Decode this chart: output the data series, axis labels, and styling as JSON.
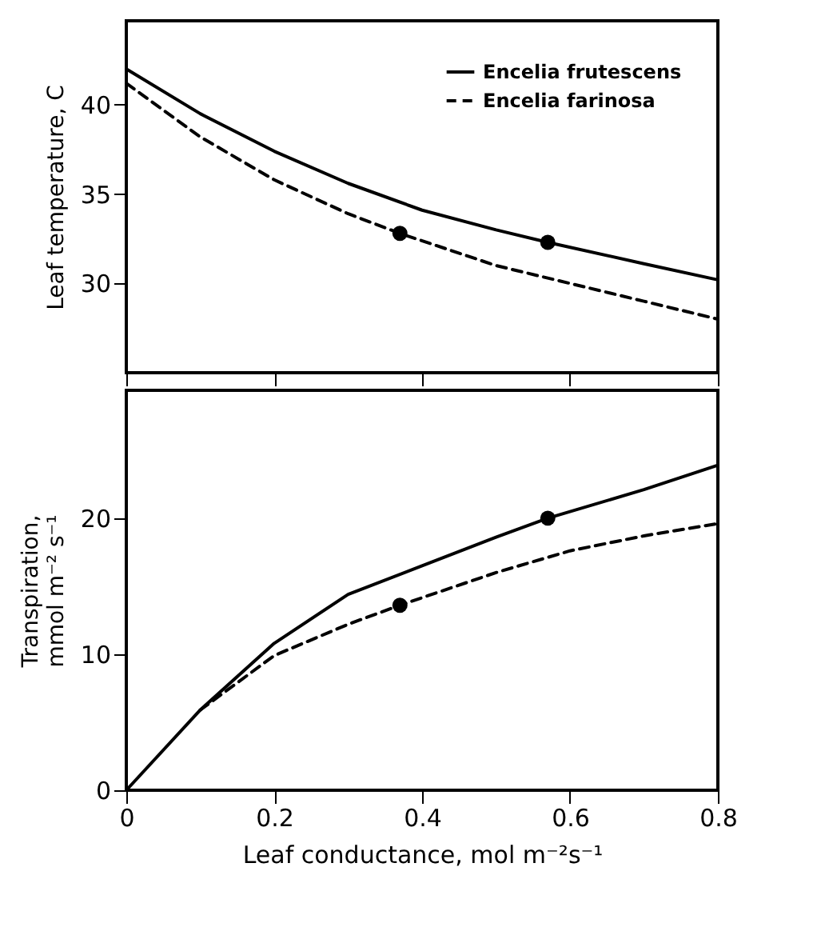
{
  "chart_data": [
    {
      "type": "line",
      "ylabel": "Leaf temperature, C",
      "xlim": [
        0,
        0.8
      ],
      "xticks": [
        0,
        0.2,
        0.4,
        0.6,
        0.8
      ],
      "ylim": [
        25,
        44.7
      ],
      "yticks": [
        30,
        35,
        40
      ],
      "tick_labels": "y",
      "grid": false,
      "legend": "top right",
      "marker": "none",
      "series": [
        {
          "name": "Encelia frutescens",
          "color": "#000000",
          "line_style": "solid",
          "x": [
            0,
            0.1,
            0.2,
            0.3,
            0.4,
            0.5,
            0.57,
            0.7,
            0.8
          ],
          "values": [
            42.0,
            39.5,
            37.4,
            35.6,
            34.1,
            33.0,
            32.3,
            31.1,
            30.2
          ]
        },
        {
          "name": "Encelia farinosa",
          "color": "#000000",
          "line_style": "dashed",
          "x": [
            0,
            0.1,
            0.2,
            0.3,
            0.37,
            0.5,
            0.6,
            0.7,
            0.8
          ],
          "values": [
            41.2,
            38.2,
            35.8,
            33.9,
            32.8,
            31.0,
            30.0,
            29.0,
            28.0
          ]
        },
        {
          "type": "scatter",
          "color": "#000000",
          "marker": "circle",
          "x": [
            0.37,
            0.57
          ],
          "values": [
            32.8,
            32.3
          ]
        }
      ]
    },
    {
      "type": "line",
      "xlabel": "Leaf conductance, mol m⁻²s⁻¹",
      "ylabel": "Transpiration,\nmmol m⁻² s⁻¹",
      "xlim": [
        0,
        0.8
      ],
      "xticks": [
        0,
        0.2,
        0.4,
        0.6,
        0.8
      ],
      "ylim": [
        0,
        29.4
      ],
      "yticks": [
        0,
        10,
        20
      ],
      "grid": false,
      "legend": false,
      "marker": "none",
      "series": [
        {
          "color": "#000000",
          "line_style": "solid",
          "x": [
            0,
            0.1,
            0.2,
            0.3,
            0.4,
            0.5,
            0.57,
            0.7,
            0.8
          ],
          "values": [
            0,
            5.9,
            10.8,
            14.4,
            16.5,
            18.6,
            20.0,
            22.1,
            23.9
          ]
        },
        {
          "color": "#000000",
          "line_style": "dashed",
          "x": [
            0.1,
            0.2,
            0.3,
            0.37,
            0.5,
            0.6,
            0.7,
            0.8
          ],
          "values": [
            5.9,
            9.9,
            12.2,
            13.6,
            16.0,
            17.6,
            18.7,
            19.6
          ]
        },
        {
          "type": "scatter",
          "color": "#000000",
          "marker": "circle",
          "x": [
            0.37,
            0.57
          ],
          "values": [
            13.6,
            20.0
          ]
        }
      ]
    }
  ]
}
